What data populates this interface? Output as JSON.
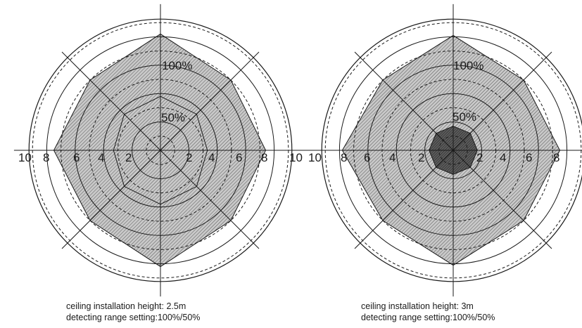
{
  "diagrams": [
    {
      "id": "left",
      "tick_labels": [
        "10",
        "8",
        "6",
        "4",
        "2",
        "2",
        "4",
        "6",
        "8",
        "10"
      ],
      "percent_labels": [
        "100%",
        "50%"
      ],
      "caption_height": "ceiling installation height: 2.5m",
      "caption_range": "detecting range setting:100%/50%",
      "outer_zone_radii": [
        7.4,
        7.0,
        8.2,
        7.0,
        7.5,
        7.0,
        8.2,
        7.0
      ],
      "inner_zone_radii": [
        3.3,
        3.6,
        3.8,
        3.6,
        3.3,
        3.6,
        3.8,
        3.6
      ]
    },
    {
      "id": "right",
      "tick_labels": [
        "10",
        "8",
        "6",
        "4",
        "2",
        "2",
        "4",
        "6",
        "8",
        "10"
      ],
      "percent_labels": [
        "100%",
        "50%"
      ],
      "caption_height": "ceiling installation height: 3m",
      "caption_range": "detecting range setting:100%/50%",
      "outer_zone_radii": [
        7.5,
        7.0,
        8.1,
        7.0,
        7.8,
        7.0,
        8.1,
        7.0
      ],
      "inner_zone_radii": [
        1.7,
        1.7,
        1.7,
        1.7,
        1.7,
        1.7,
        1.7,
        1.7
      ]
    }
  ]
}
